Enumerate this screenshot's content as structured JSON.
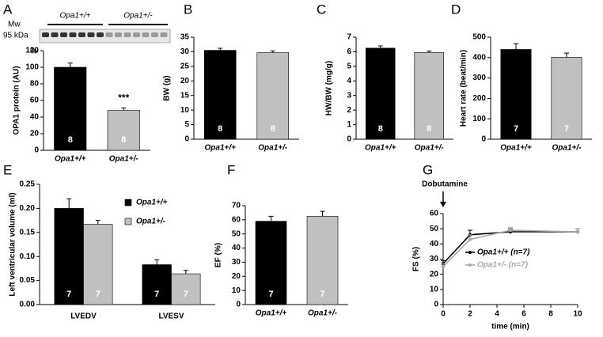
{
  "chart_data": [
    {
      "type": "bar",
      "panel": "A",
      "ylabel": "OPA1 protein (AU)",
      "unit": "%",
      "significance": "***",
      "blot": {
        "mw": "Mw",
        "size": "95 kDa",
        "groups": [
          "Opa1+/+",
          "Opa1+/-"
        ]
      },
      "categories": [
        "Opa1+/+",
        "Opa1+/-"
      ],
      "values": [
        100,
        48
      ],
      "errors": [
        5,
        3
      ],
      "n": [
        8,
        8
      ],
      "colors": [
        "#000000",
        "#c0c0c0"
      ],
      "ylim": [
        0,
        120
      ],
      "yticks": [
        0,
        20,
        40,
        60,
        80,
        100,
        120
      ]
    },
    {
      "type": "bar",
      "panel": "B",
      "ylabel": "BW (g)",
      "categories": [
        "Opa1+/+",
        "Opa1+/-"
      ],
      "values": [
        30.5,
        29.7
      ],
      "errors": [
        0.7,
        0.6
      ],
      "n": [
        8,
        8
      ],
      "colors": [
        "#000000",
        "#c0c0c0"
      ],
      "ylim": [
        0,
        35
      ],
      "yticks": [
        0,
        5,
        10,
        15,
        20,
        25,
        30,
        35
      ]
    },
    {
      "type": "bar",
      "panel": "C",
      "ylabel": "HW/BW (mg/g)",
      "categories": [
        "Opa1+/+",
        "Opa1+/-"
      ],
      "values": [
        6.25,
        5.95
      ],
      "errors": [
        0.15,
        0.1
      ],
      "n": [
        8,
        8
      ],
      "colors": [
        "#000000",
        "#c0c0c0"
      ],
      "ylim": [
        0,
        7
      ],
      "yticks": [
        0,
        1,
        2,
        3,
        4,
        5,
        6,
        7
      ]
    },
    {
      "type": "bar",
      "panel": "D",
      "ylabel": "Heart rate (beat/min)",
      "categories": [
        "Opa1+/+",
        "Opa1+/-"
      ],
      "values": [
        440,
        402
      ],
      "errors": [
        28,
        20
      ],
      "n": [
        7,
        7
      ],
      "colors": [
        "#000000",
        "#c0c0c0"
      ],
      "ylim": [
        0,
        500
      ],
      "yticks": [
        0,
        100,
        200,
        300,
        400,
        500
      ]
    },
    {
      "type": "grouped-bar",
      "panel": "E",
      "ylabel": "Left ventricular volume (ml)",
      "categories": [
        "LVEDV",
        "LVESV"
      ],
      "series": [
        {
          "name": "Opa1+/+",
          "color": "#000000",
          "values": [
            0.2,
            0.083
          ],
          "errors": [
            0.02,
            0.01
          ],
          "n": [
            7,
            7
          ]
        },
        {
          "name": "Opa1+/-",
          "color": "#c0c0c0",
          "values": [
            0.167,
            0.064
          ],
          "errors": [
            0.008,
            0.007
          ],
          "n": [
            7,
            7
          ]
        }
      ],
      "ylim": [
        0,
        0.25
      ],
      "yticks": [
        {
          "value": 0,
          "label": "0.00"
        },
        {
          "value": 0.05,
          "label": "0.05"
        },
        {
          "value": 0.1,
          "label": "0.10"
        },
        {
          "value": 0.15,
          "label": "0.15"
        },
        {
          "value": 0.2,
          "label": "0.20"
        },
        {
          "value": 0.25,
          "label": "0.25"
        }
      ]
    },
    {
      "type": "bar",
      "panel": "F",
      "ylabel": "EF (%)",
      "categories": [
        "Opa1+/+",
        "Opa1+/-"
      ],
      "values": [
        59,
        62.5
      ],
      "errors": [
        3.5,
        3.5
      ],
      "n": [
        7,
        7
      ],
      "colors": [
        "#000000",
        "#c0c0c0"
      ],
      "ylim": [
        0,
        70
      ],
      "yticks": [
        0,
        10,
        20,
        30,
        40,
        50,
        60,
        70
      ]
    },
    {
      "type": "line",
      "panel": "G",
      "ylabel": "FS (%)",
      "xlabel": "time (min)",
      "annotation": "Dobutamine",
      "x": [
        0,
        2,
        5,
        10
      ],
      "series": [
        {
          "name": "Opa1+/+ (n=7)",
          "color": "#000000",
          "values": [
            27,
            46,
            48,
            48
          ],
          "errors": [
            2,
            3,
            2,
            2
          ]
        },
        {
          "name": "Opa1+/- (n=7)",
          "color": "#a8a8a8",
          "values": [
            25,
            43,
            49,
            48
          ],
          "errors": [
            2,
            3,
            2,
            2
          ]
        }
      ],
      "xlim": [
        0,
        10
      ],
      "xticks": [
        0,
        2,
        4,
        6,
        8,
        10
      ],
      "ylim": [
        0,
        60
      ],
      "yticks": [
        0,
        10,
        20,
        30,
        40,
        50,
        60
      ]
    }
  ]
}
